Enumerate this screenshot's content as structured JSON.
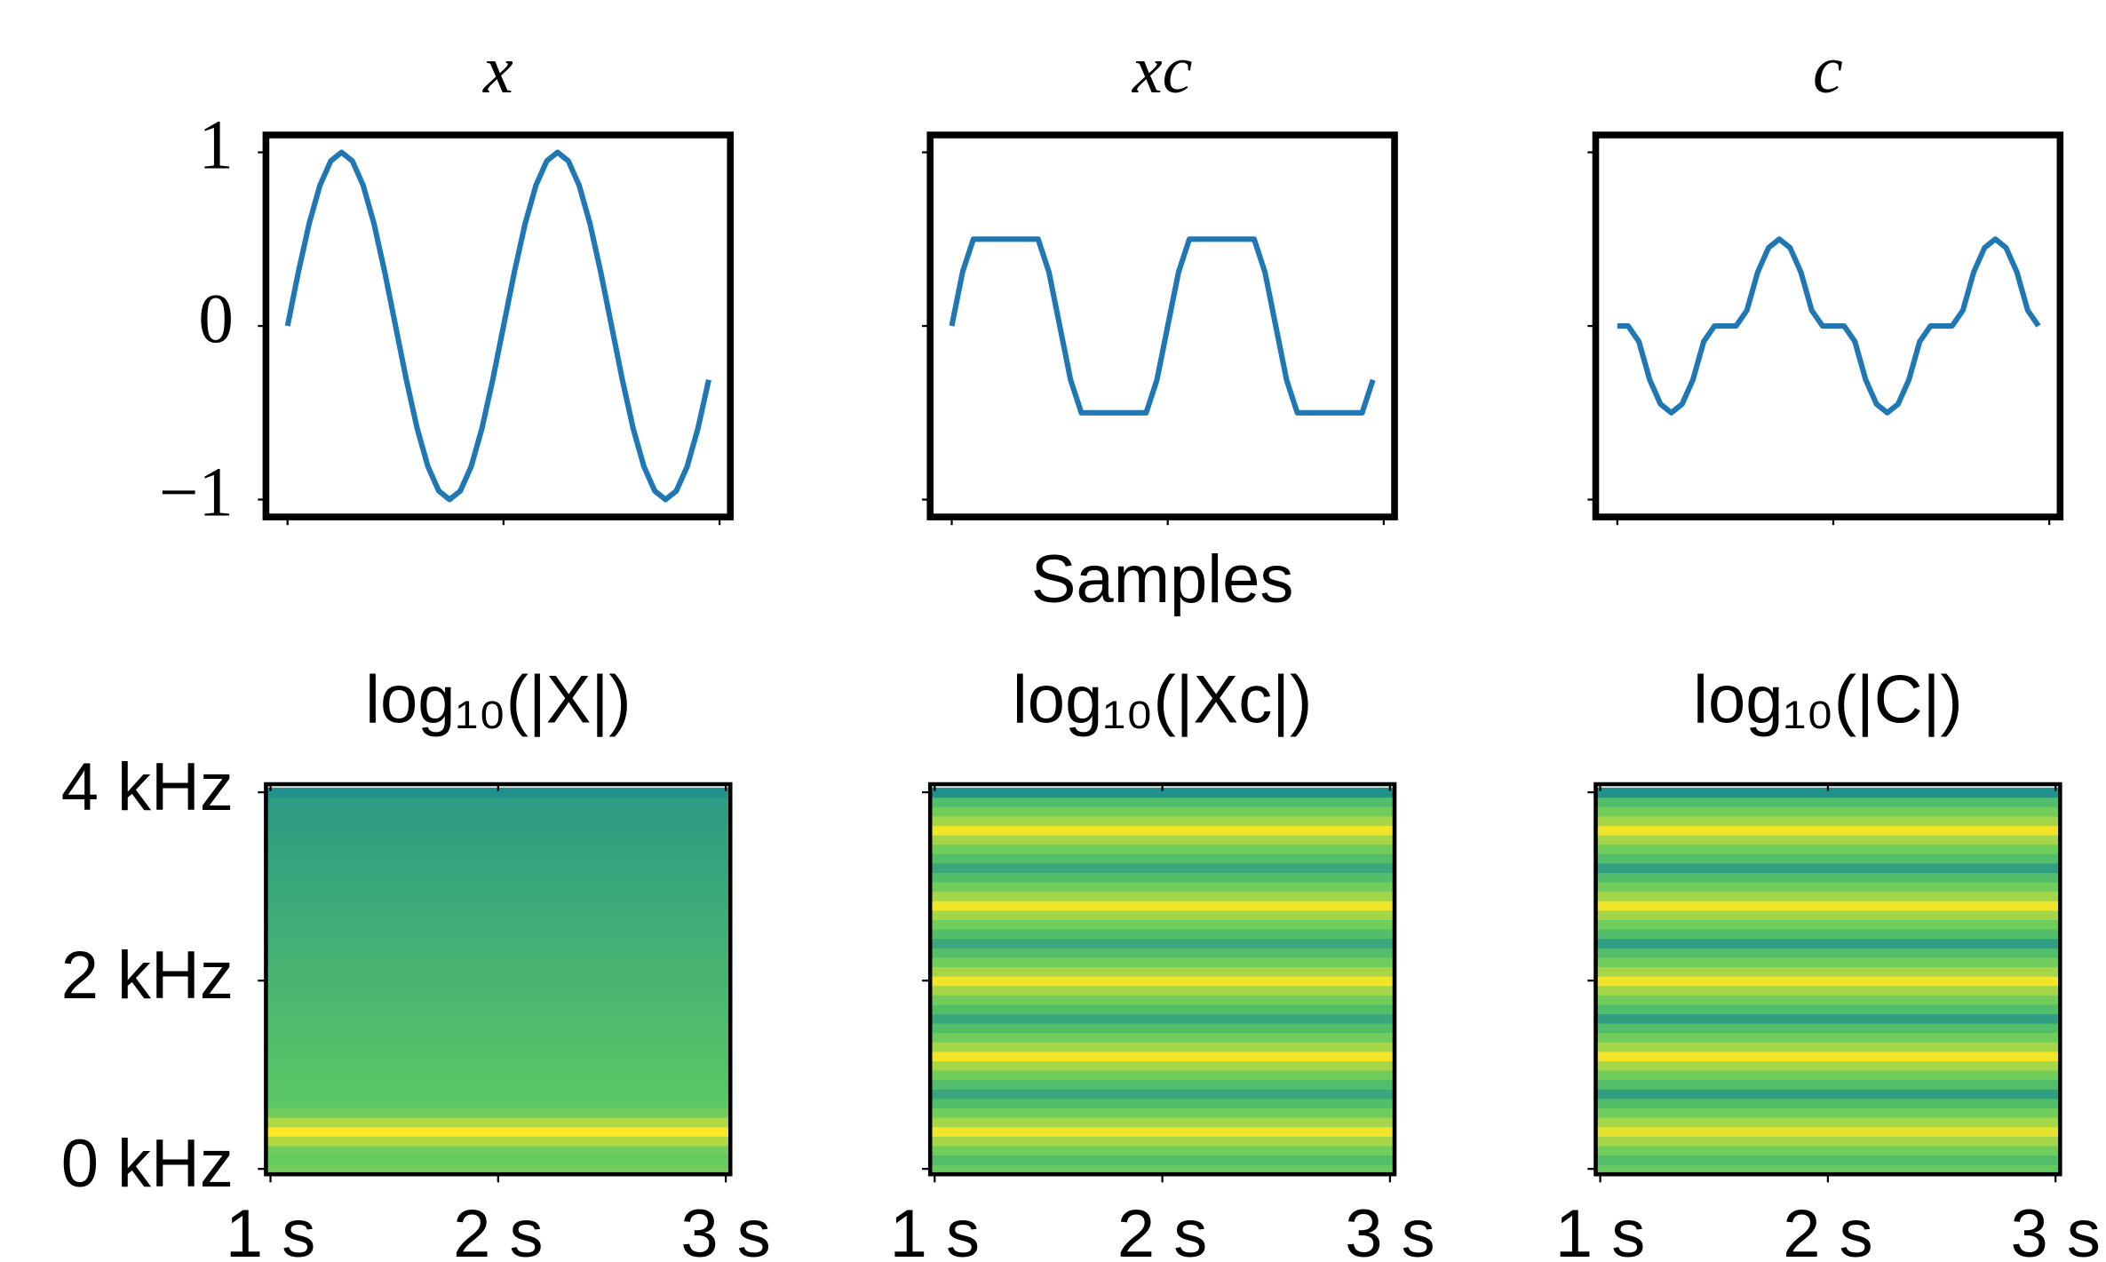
{
  "chart_data": [
    {
      "type": "line",
      "title": "x",
      "color": "#1f77b4",
      "x": [
        0,
        1,
        2,
        3,
        4,
        5,
        6,
        7,
        8,
        9,
        10,
        11,
        12,
        13,
        14,
        15,
        16,
        17,
        18,
        19,
        20,
        21,
        22,
        23,
        24,
        25,
        26,
        27,
        28,
        29,
        30,
        31,
        32,
        33,
        34,
        35,
        36,
        37,
        38,
        39
      ],
      "values": [
        0,
        0.31,
        0.59,
        0.81,
        0.95,
        1,
        0.95,
        0.81,
        0.59,
        0.31,
        0,
        -0.31,
        -0.59,
        -0.81,
        -0.95,
        -1,
        -0.95,
        -0.81,
        -0.59,
        -0.31,
        0,
        0.31,
        0.59,
        0.81,
        0.95,
        1,
        0.95,
        0.81,
        0.59,
        0.31,
        0,
        -0.31,
        -0.59,
        -0.81,
        -0.95,
        -1,
        -0.95,
        -0.81,
        -0.59,
        -0.31
      ],
      "xlim": [
        -2,
        41
      ],
      "ylim": [
        -1.1,
        1.1
      ],
      "xticks": [
        0,
        20,
        40
      ],
      "yticks": [
        {
          "value": -1,
          "label": "−1"
        },
        0,
        1
      ]
    },
    {
      "type": "line",
      "title": "xc",
      "xlabel": "Samples",
      "color": "#1f77b4",
      "sharey": true,
      "x": [
        0,
        1,
        2,
        3,
        4,
        5,
        6,
        7,
        8,
        9,
        10,
        11,
        12,
        13,
        14,
        15,
        16,
        17,
        18,
        19,
        20,
        21,
        22,
        23,
        24,
        25,
        26,
        27,
        28,
        29,
        30,
        31,
        32,
        33,
        34,
        35,
        36,
        37,
        38,
        39
      ],
      "values": [
        0,
        0.31,
        0.5,
        0.5,
        0.5,
        0.5,
        0.5,
        0.5,
        0.5,
        0.31,
        0,
        -0.31,
        -0.5,
        -0.5,
        -0.5,
        -0.5,
        -0.5,
        -0.5,
        -0.5,
        -0.31,
        0,
        0.31,
        0.5,
        0.5,
        0.5,
        0.5,
        0.5,
        0.5,
        0.5,
        0.31,
        0,
        -0.31,
        -0.5,
        -0.5,
        -0.5,
        -0.5,
        -0.5,
        -0.5,
        -0.5,
        -0.31
      ],
      "xlim": [
        -2,
        41
      ],
      "ylim": [
        -1.1,
        1.1
      ],
      "xticks": [
        0,
        20,
        40
      ]
    },
    {
      "type": "line",
      "title": "c",
      "color": "#1f77b4",
      "sharey": true,
      "x": [
        0,
        1,
        2,
        3,
        4,
        5,
        6,
        7,
        8,
        9,
        10,
        11,
        12,
        13,
        14,
        15,
        16,
        17,
        18,
        19,
        20,
        21,
        22,
        23,
        24,
        25,
        26,
        27,
        28,
        29,
        30,
        31,
        32,
        33,
        34,
        35,
        36,
        37,
        38,
        39
      ],
      "values": [
        0,
        0,
        -0.09,
        -0.31,
        -0.45,
        -0.5,
        -0.45,
        -0.31,
        -0.09,
        0,
        0,
        0,
        0.09,
        0.31,
        0.45,
        0.5,
        0.45,
        0.31,
        0.09,
        0,
        0,
        0,
        -0.09,
        -0.31,
        -0.45,
        -0.5,
        -0.45,
        -0.31,
        -0.09,
        0,
        0,
        0,
        0.09,
        0.31,
        0.45,
        0.5,
        0.45,
        0.31,
        0.09,
        0
      ],
      "xlim": [
        -2,
        41
      ],
      "ylim": [
        -1.1,
        1.1
      ],
      "xticks": [
        0,
        20,
        40
      ]
    },
    {
      "type": "heatmap",
      "title": "log₁₀(|X|)",
      "colormap": "viridis",
      "clim": [
        -3,
        2
      ],
      "y": [
        0,
        100,
        200,
        300,
        400,
        500,
        600,
        700,
        800,
        900,
        1000,
        1100,
        1200,
        1300,
        1400,
        1500,
        1600,
        1700,
        1800,
        1900,
        2000,
        2100,
        2200,
        2300,
        2400,
        2500,
        2600,
        2700,
        2800,
        2900,
        3000,
        3100,
        3200,
        3300,
        3400,
        3500,
        3600,
        3700,
        3800,
        3900,
        4000
      ],
      "values": [
        0.9,
        0.8,
        0.9,
        1.4,
        2,
        1.4,
        0.9,
        0.7,
        0.67,
        0.64,
        0.61,
        0.58,
        0.55,
        0.52,
        0.49,
        0.46,
        0.43,
        0.4,
        0.37,
        0.34,
        0.31,
        0.28,
        0.25,
        0.22,
        0.19,
        0.16,
        0.13,
        0.1,
        0.07,
        0.04,
        0.01,
        -0.02,
        -0.05,
        -0.08,
        -0.11,
        -0.14,
        -0.17,
        -0.2,
        -0.23,
        -0.26,
        -0.5
      ],
      "xlim": [
        0.98,
        3.02
      ],
      "ylim": [
        -57,
        4086
      ],
      "xticks": [
        {
          "value": 1,
          "label": "1 s"
        },
        {
          "value": 2,
          "label": "2 s"
        },
        {
          "value": 3,
          "label": "3 s"
        }
      ],
      "yticks": [
        {
          "value": 0,
          "label": "0 kHz"
        },
        {
          "value": 2000,
          "label": "2 kHz"
        },
        {
          "value": 4000,
          "label": "4 kHz"
        }
      ]
    },
    {
      "type": "heatmap",
      "title": "log₁₀(|Xc|)",
      "colormap": "viridis",
      "clim": [
        -3,
        2
      ],
      "sharey": true,
      "y": [
        0,
        100,
        200,
        300,
        400,
        500,
        600,
        700,
        800,
        900,
        1000,
        1100,
        1200,
        1300,
        1400,
        1500,
        1600,
        1700,
        1800,
        1900,
        2000,
        2100,
        2200,
        2300,
        2400,
        2500,
        2600,
        2700,
        2800,
        2900,
        3000,
        3100,
        3200,
        3300,
        3400,
        3500,
        3600,
        3700,
        3800,
        3900,
        4000
      ],
      "values": [
        0.8,
        0.5,
        0.9,
        1.3,
        1.9,
        1.3,
        0.9,
        0.5,
        0,
        0.5,
        0.9,
        1.3,
        1.9,
        1.3,
        0.9,
        0.5,
        0,
        0.5,
        0.9,
        1.3,
        1.9,
        1.3,
        0.9,
        0.5,
        0,
        0.5,
        0.9,
        1.3,
        1.9,
        1.3,
        0.9,
        0.5,
        0,
        0.5,
        0.9,
        1.3,
        1.9,
        1.3,
        0.9,
        0.5,
        -0.5
      ],
      "xlim": [
        0.98,
        3.02
      ],
      "ylim": [
        -57,
        4086
      ],
      "xticks": [
        {
          "value": 1,
          "label": "1 s"
        },
        {
          "value": 2,
          "label": "2 s"
        },
        {
          "value": 3,
          "label": "3 s"
        }
      ]
    },
    {
      "type": "heatmap",
      "title": "log₁₀(|C|)",
      "colormap": "viridis",
      "clim": [
        -3,
        2
      ],
      "sharey": true,
      "y": [
        0,
        100,
        200,
        300,
        400,
        500,
        600,
        700,
        800,
        900,
        1000,
        1100,
        1200,
        1300,
        1400,
        1500,
        1600,
        1700,
        1800,
        1900,
        2000,
        2100,
        2200,
        2300,
        2400,
        2500,
        2600,
        2700,
        2800,
        2900,
        3000,
        3100,
        3200,
        3300,
        3400,
        3500,
        3600,
        3700,
        3800,
        3900,
        4000
      ],
      "values": [
        0.8,
        0.5,
        0.9,
        1.3,
        1.8,
        1.3,
        0.9,
        0.5,
        -0.2,
        0.5,
        0.9,
        1.3,
        1.9,
        1.3,
        0.9,
        0.5,
        -0.2,
        0.5,
        0.9,
        1.3,
        1.9,
        1.3,
        0.9,
        0.5,
        -0.2,
        0.5,
        0.9,
        1.3,
        1.9,
        1.3,
        0.9,
        0.5,
        -0.2,
        0.5,
        0.9,
        1.3,
        1.9,
        1.3,
        0.9,
        0.5,
        -0.5
      ],
      "xlim": [
        0.98,
        3.02
      ],
      "ylim": [
        -57,
        4086
      ],
      "xticks": [
        {
          "value": 1,
          "label": "1 s"
        },
        {
          "value": 2,
          "label": "2 s"
        },
        {
          "value": 3,
          "label": "3 s"
        }
      ]
    }
  ]
}
